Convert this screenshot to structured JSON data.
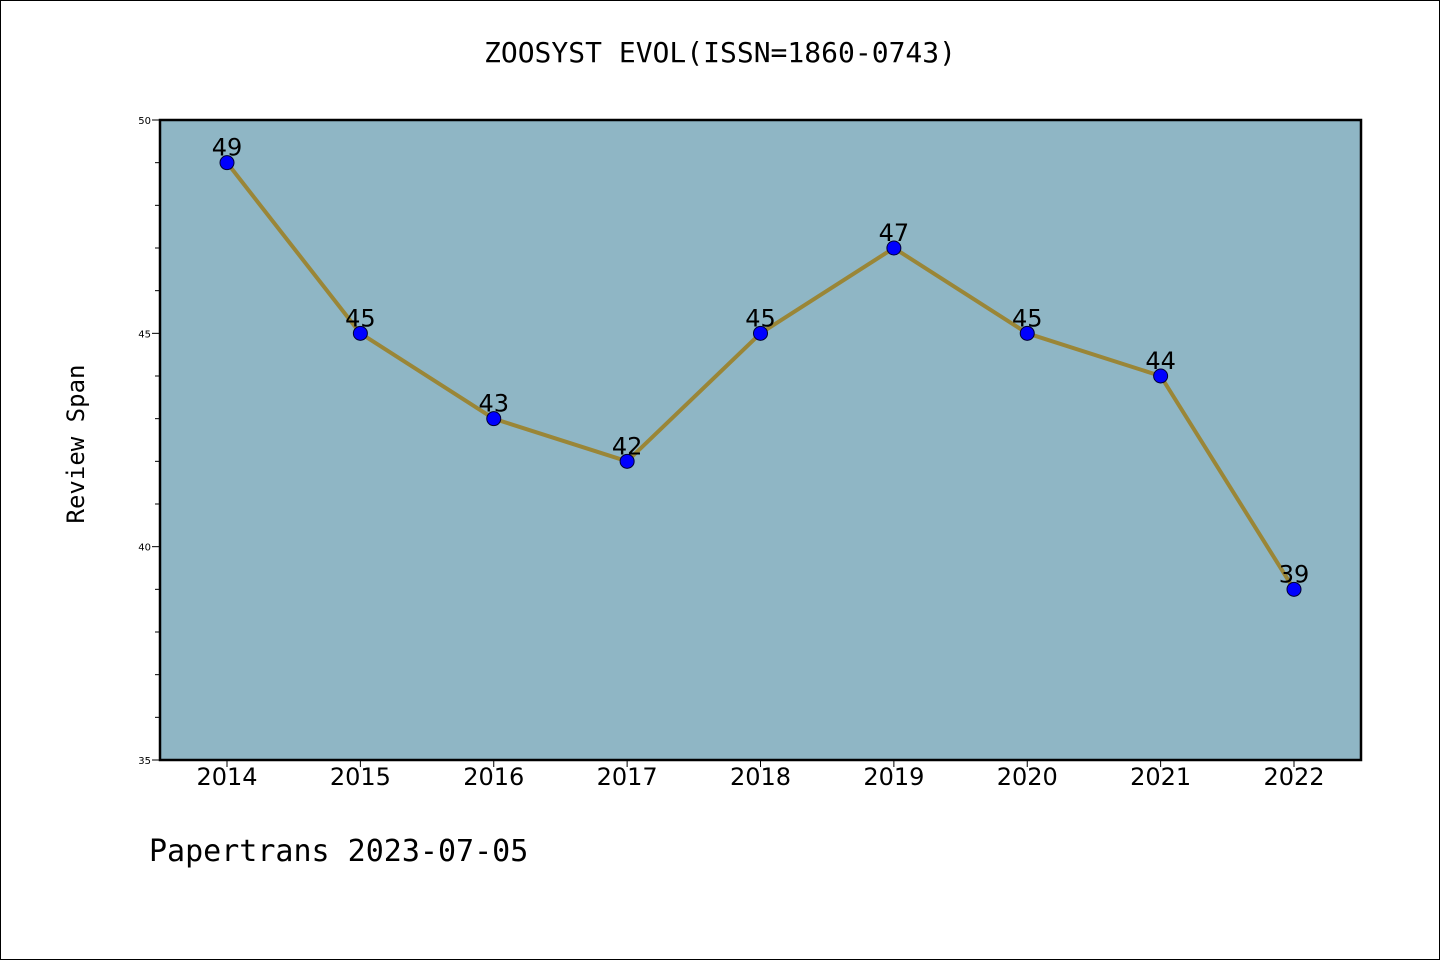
{
  "chart_data": {
    "type": "line",
    "title": "ZOOSYST EVOL(ISSN=1860-0743)",
    "xlabel": "",
    "ylabel": "Review Span",
    "x": [
      "2014",
      "2015",
      "2016",
      "2017",
      "2018",
      "2019",
      "2020",
      "2021",
      "2022"
    ],
    "series": [
      {
        "values": [
          49,
          45,
          43,
          42,
          45,
          47,
          45,
          44,
          39
        ]
      }
    ],
    "ylim": [
      35,
      50
    ],
    "yticks": [
      35,
      40,
      45,
      50
    ],
    "grid": false,
    "colors": {
      "plot_background": "#8FB6C5",
      "line": "#9A8637",
      "marker": "#0000FF"
    }
  },
  "footer": {
    "text": "Papertrans 2023-07-05"
  }
}
